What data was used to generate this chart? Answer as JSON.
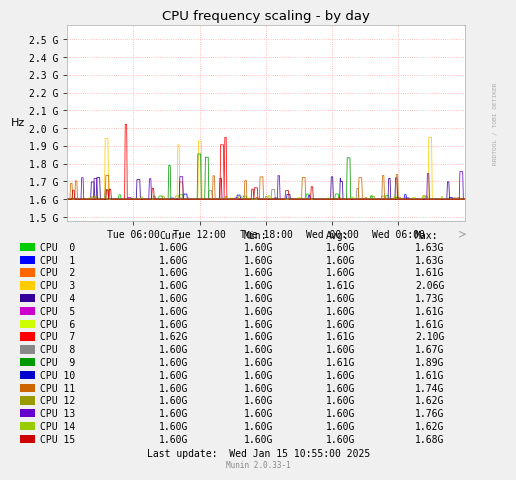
{
  "title": "CPU frequency scaling - by day",
  "ylabel": "Hz",
  "background_color": "#f0f0f0",
  "plot_bg_color": "#ffffff",
  "grid_color": "#ffaaaa",
  "yticks": [
    1500000000.0,
    1600000000.0,
    1700000000.0,
    1800000000.0,
    1900000000.0,
    2000000000.0,
    2100000000.0,
    2200000000.0,
    2300000000.0,
    2400000000.0,
    2500000000.0
  ],
  "ytick_labels": [
    "1.5 G",
    "1.6 G",
    "1.7 G",
    "1.8 G",
    "1.9 G",
    "2.0 G",
    "2.1 G",
    "2.2 G",
    "2.3 G",
    "2.4 G",
    "2.5 G"
  ],
  "ylim": [
    1480000000.0,
    2580000000.0
  ],
  "xtick_labels": [
    "Tue 06:00",
    "Tue 12:00",
    "Tue 18:00",
    "Wed 00:00",
    "Wed 06:00"
  ],
  "rrdtool_label": "RRDTOOL / TOBI OETIKER",
  "cpu_colors": [
    "#00cc00",
    "#0000ff",
    "#ff6600",
    "#ffcc00",
    "#330099",
    "#cc00cc",
    "#ccff00",
    "#ff0000",
    "#888888",
    "#009900",
    "#0000cc",
    "#cc6600",
    "#999900",
    "#6600cc",
    "#99cc00",
    "#cc0000"
  ],
  "cpu_labels": [
    "CPU  0",
    "CPU  1",
    "CPU  2",
    "CPU  3",
    "CPU  4",
    "CPU  5",
    "CPU  6",
    "CPU  7",
    "CPU  8",
    "CPU  9",
    "CPU 10",
    "CPU 11",
    "CPU 12",
    "CPU 13",
    "CPU 14",
    "CPU 15"
  ],
  "col_headers": [
    "Cur:",
    "Min:",
    "Avg:",
    "Max:"
  ],
  "cur_values": [
    "1.60G",
    "1.60G",
    "1.60G",
    "1.60G",
    "1.60G",
    "1.60G",
    "1.60G",
    "1.62G",
    "1.60G",
    "1.60G",
    "1.60G",
    "1.60G",
    "1.60G",
    "1.60G",
    "1.60G",
    "1.60G"
  ],
  "min_values": [
    "1.60G",
    "1.60G",
    "1.60G",
    "1.60G",
    "1.60G",
    "1.60G",
    "1.60G",
    "1.60G",
    "1.60G",
    "1.60G",
    "1.60G",
    "1.60G",
    "1.60G",
    "1.60G",
    "1.60G",
    "1.60G"
  ],
  "avg_values": [
    "1.60G",
    "1.60G",
    "1.60G",
    "1.61G",
    "1.60G",
    "1.60G",
    "1.60G",
    "1.61G",
    "1.60G",
    "1.61G",
    "1.60G",
    "1.60G",
    "1.60G",
    "1.60G",
    "1.60G",
    "1.60G"
  ],
  "max_values": [
    "1.63G",
    "1.63G",
    "1.61G",
    "2.06G",
    "1.73G",
    "1.61G",
    "1.61G",
    "2.10G",
    "1.67G",
    "1.89G",
    "1.61G",
    "1.74G",
    "1.62G",
    "1.76G",
    "1.62G",
    "1.68G"
  ],
  "last_update": "Last update:  Wed Jan 15 10:55:00 2025",
  "munin_version": "Munin 2.0.33-1",
  "n_points": 576
}
